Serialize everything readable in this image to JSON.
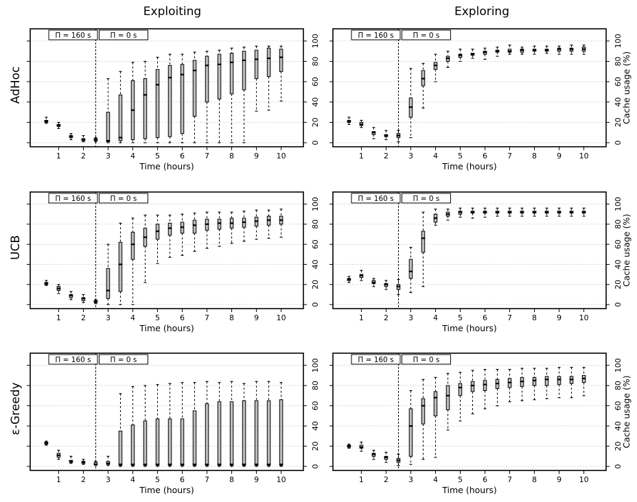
{
  "column_titles": [
    "Exploiting",
    "Exploring"
  ],
  "row_titles": [
    "AdHoc",
    "UCB",
    "ε-Greedy"
  ],
  "chart_data": {
    "type": "boxplot",
    "xlabel": "Time (hours)",
    "right_ylabel": "Cache usage (%)",
    "ylim": [
      -4,
      112
    ],
    "yticks": [
      0,
      20,
      40,
      60,
      80,
      100
    ],
    "xlim": [
      -0.15,
      10.9
    ],
    "xticks": [
      1,
      2,
      3,
      4,
      5,
      6,
      7,
      8,
      9,
      10
    ],
    "x": [
      0.5,
      1,
      1.5,
      2,
      2.5,
      3,
      3.5,
      4,
      4.5,
      5,
      5.5,
      6,
      6.5,
      7,
      7.5,
      8,
      8.5,
      9,
      9.5,
      10
    ],
    "grid": true,
    "phase_change_hours": 2.5,
    "phase_labels": [
      "Π = 160 s",
      "Π = 0 s"
    ],
    "panels": [
      {
        "row": "AdHoc",
        "column": "Exploiting",
        "boxes": [
          [
            19,
            20,
            21,
            22,
            25
          ],
          [
            14,
            16,
            17,
            18,
            20
          ],
          [
            3,
            5,
            6,
            7,
            9
          ],
          [
            1,
            2,
            3,
            4,
            7
          ],
          [
            1,
            2,
            3,
            4,
            5
          ],
          [
            0,
            1,
            2,
            30,
            63
          ],
          [
            0,
            2,
            5,
            47,
            70
          ],
          [
            0,
            3,
            32,
            61,
            79
          ],
          [
            0,
            4,
            47,
            63,
            80
          ],
          [
            0,
            5,
            57,
            72,
            84
          ],
          [
            0,
            6,
            64,
            76,
            87
          ],
          [
            0,
            9,
            67,
            77,
            87
          ],
          [
            0,
            26,
            71,
            81,
            89
          ],
          [
            0,
            40,
            76,
            85,
            90
          ],
          [
            0,
            43,
            77,
            87,
            91
          ],
          [
            0,
            48,
            79,
            88,
            93
          ],
          [
            0,
            52,
            81,
            90,
            94
          ],
          [
            31,
            63,
            82,
            91,
            95
          ],
          [
            32,
            65,
            83,
            93,
            95
          ],
          [
            41,
            70,
            84,
            92,
            95
          ]
        ]
      },
      {
        "row": "AdHoc",
        "column": "Exploring",
        "boxes": [
          [
            18,
            20,
            21,
            22,
            25
          ],
          [
            15,
            17,
            18,
            20,
            22
          ],
          [
            4,
            8,
            10,
            11,
            15
          ],
          [
            3,
            6,
            7,
            8,
            12
          ],
          [
            1,
            5,
            7,
            9,
            12
          ],
          [
            5,
            25,
            35,
            44,
            73
          ],
          [
            34,
            56,
            63,
            71,
            78
          ],
          [
            60,
            72,
            76,
            79,
            87
          ],
          [
            74,
            80,
            83,
            85,
            90
          ],
          [
            80,
            84,
            86,
            87,
            92
          ],
          [
            83,
            86,
            87,
            88,
            92
          ],
          [
            82,
            87,
            89,
            90,
            93
          ],
          [
            85,
            89,
            90,
            91,
            94
          ],
          [
            87,
            89,
            90,
            92,
            96
          ],
          [
            87,
            89,
            91,
            92,
            94
          ],
          [
            87,
            90,
            91,
            92,
            95
          ],
          [
            88,
            90,
            91,
            92,
            95
          ],
          [
            87,
            90,
            92,
            93,
            95
          ],
          [
            87,
            90,
            92,
            93,
            96
          ],
          [
            87,
            90,
            92,
            94,
            96
          ]
        ]
      },
      {
        "row": "UCB",
        "column": "Exploiting",
        "boxes": [
          [
            19,
            20,
            21,
            22,
            24
          ],
          [
            11,
            14,
            16,
            18,
            20
          ],
          [
            5,
            7,
            9,
            10,
            13
          ],
          [
            2,
            4,
            6,
            7,
            10
          ],
          [
            1,
            2,
            3,
            4,
            5
          ],
          [
            0,
            6,
            14,
            36,
            60
          ],
          [
            0,
            13,
            40,
            62,
            81
          ],
          [
            0,
            45,
            60,
            72,
            86
          ],
          [
            22,
            58,
            67,
            76,
            89
          ],
          [
            41,
            65,
            73,
            80,
            89
          ],
          [
            47,
            69,
            76,
            81,
            89
          ],
          [
            49,
            71,
            77,
            82,
            90
          ],
          [
            53,
            71,
            79,
            84,
            91
          ],
          [
            56,
            74,
            80,
            85,
            92
          ],
          [
            58,
            75,
            81,
            85,
            92
          ],
          [
            61,
            76,
            81,
            86,
            92
          ],
          [
            63,
            77,
            82,
            86,
            93
          ],
          [
            65,
            78,
            83,
            87,
            94
          ],
          [
            66,
            79,
            84,
            88,
            94
          ],
          [
            67,
            80,
            84,
            88,
            95
          ]
        ]
      },
      {
        "row": "UCB",
        "column": "Exploring",
        "boxes": [
          [
            22,
            24,
            25,
            26,
            28
          ],
          [
            24,
            27,
            29,
            30,
            34
          ],
          [
            18,
            21,
            22,
            24,
            26
          ],
          [
            15,
            18,
            20,
            21,
            24
          ],
          [
            10,
            15,
            18,
            20,
            25
          ],
          [
            12,
            26,
            33,
            45,
            57
          ],
          [
            18,
            52,
            66,
            73,
            92
          ],
          [
            79,
            82,
            86,
            90,
            95
          ],
          [
            84,
            88,
            90,
            92,
            95
          ],
          [
            87,
            90,
            92,
            93,
            96
          ],
          [
            86,
            91,
            92,
            93,
            96
          ],
          [
            87,
            91,
            92,
            93,
            96
          ],
          [
            88,
            91,
            92,
            93,
            96
          ],
          [
            88,
            91,
            92,
            93,
            96
          ],
          [
            88,
            91,
            92,
            93,
            96
          ],
          [
            88,
            91,
            92,
            93,
            96
          ],
          [
            88,
            91,
            92,
            93,
            96
          ],
          [
            88,
            91,
            92,
            93,
            96
          ],
          [
            88,
            91,
            92,
            93,
            96
          ],
          [
            88,
            91,
            92,
            93,
            96
          ]
        ]
      },
      {
        "row": "ε-Greedy",
        "column": "Exploiting",
        "boxes": [
          [
            21,
            22,
            23,
            24,
            25
          ],
          [
            7,
            9,
            11,
            13,
            16
          ],
          [
            3,
            4,
            5,
            6,
            10
          ],
          [
            2,
            3,
            4,
            5,
            7
          ],
          [
            1,
            2,
            2,
            4,
            5
          ],
          [
            1,
            2,
            3,
            5,
            10
          ],
          [
            0,
            1,
            2,
            35,
            72
          ],
          [
            0,
            1,
            2,
            41,
            79
          ],
          [
            0,
            1,
            2,
            45,
            80
          ],
          [
            0,
            1,
            2,
            47,
            81
          ],
          [
            0,
            1,
            2,
            47,
            82
          ],
          [
            0,
            1,
            2,
            47,
            83
          ],
          [
            0,
            1,
            2,
            55,
            83
          ],
          [
            0,
            1,
            2,
            62,
            84
          ],
          [
            0,
            1,
            2,
            64,
            83
          ],
          [
            0,
            1,
            2,
            64,
            84
          ],
          [
            0,
            1,
            2,
            65,
            82
          ],
          [
            0,
            1,
            2,
            65,
            84
          ],
          [
            0,
            1,
            2,
            65,
            84
          ],
          [
            0,
            1,
            2,
            66,
            83
          ]
        ]
      },
      {
        "row": "ε-Greedy",
        "column": "Exploring",
        "boxes": [
          [
            18,
            19,
            20,
            21,
            22
          ],
          [
            15,
            18,
            19,
            21,
            24
          ],
          [
            7,
            10,
            12,
            13,
            16
          ],
          [
            4,
            7,
            9,
            10,
            14
          ],
          [
            1,
            4,
            6,
            8,
            12
          ],
          [
            2,
            10,
            40,
            57,
            75
          ],
          [
            7,
            42,
            60,
            67,
            86
          ],
          [
            9,
            50,
            68,
            74,
            88
          ],
          [
            36,
            56,
            70,
            80,
            92
          ],
          [
            45,
            70,
            78,
            82,
            93
          ],
          [
            52,
            74,
            80,
            84,
            95
          ],
          [
            57,
            75,
            81,
            85,
            96
          ],
          [
            60,
            77,
            82,
            86,
            96
          ],
          [
            64,
            78,
            83,
            87,
            96
          ],
          [
            65,
            79,
            84,
            88,
            97
          ],
          [
            66,
            80,
            85,
            88,
            97
          ],
          [
            67,
            80,
            86,
            89,
            97
          ],
          [
            68,
            81,
            86,
            89,
            98
          ],
          [
            68,
            82,
            86,
            89,
            98
          ],
          [
            70,
            83,
            87,
            90,
            98
          ]
        ]
      }
    ]
  }
}
